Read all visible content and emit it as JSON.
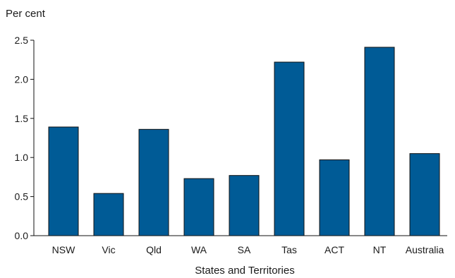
{
  "chart_data": {
    "type": "bar",
    "ylabel": "Per cent",
    "xlabel": "States and Territories",
    "categories": [
      "NSW",
      "Vic",
      "Qld",
      "WA",
      "SA",
      "Tas",
      "ACT",
      "NT",
      "Australia"
    ],
    "values": [
      1.39,
      0.54,
      1.36,
      0.73,
      0.77,
      2.22,
      0.97,
      2.41,
      1.05
    ],
    "ylim": [
      0,
      2.5
    ],
    "yticks": [
      "0.0",
      "0.5",
      "1.0",
      "1.5",
      "2.0",
      "2.5"
    ],
    "grid": false,
    "bar_color": "#005b96"
  }
}
